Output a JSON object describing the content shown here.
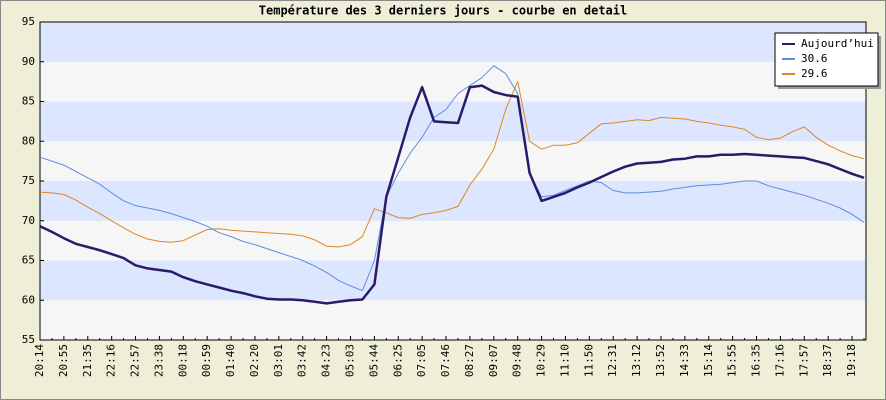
{
  "chart_data": {
    "type": "line",
    "title": "Température des 3 derniers jours - courbe en detail",
    "categories": [
      "20:14",
      null,
      "20:55",
      null,
      "21:35",
      null,
      "22:16",
      null,
      "22:57",
      null,
      "23:38",
      null,
      "00:18",
      null,
      "00:59",
      null,
      "01:40",
      null,
      "02:20",
      null,
      "03:01",
      null,
      "03:42",
      null,
      "04:23",
      null,
      "05:03",
      null,
      "05:44",
      null,
      "06:25",
      null,
      "07:05",
      null,
      "07:46",
      null,
      "08:27",
      null,
      "09:07",
      null,
      "09:48",
      null,
      "10:29",
      null,
      "11:10",
      null,
      "11:50",
      null,
      "12:31",
      null,
      "13:12",
      null,
      "13:52",
      null,
      "14:33",
      null,
      "15:14",
      null,
      "15:55",
      null,
      "16:35",
      null,
      "17:16",
      null,
      "17:57",
      null,
      "18:37",
      null,
      "19:18",
      null
    ],
    "series": [
      {
        "name": "Aujourd’hui",
        "color": "#2a1a6a",
        "values": [
          69.3,
          68.6,
          67.8,
          67.1,
          66.7,
          66.3,
          65.8,
          65.3,
          64.4,
          64.0,
          63.8,
          63.6,
          62.9,
          62.4,
          62.0,
          61.6,
          61.2,
          60.9,
          60.5,
          60.2,
          60.1,
          60.1,
          60.0,
          59.8,
          59.6,
          59.8,
          60.0,
          60.1,
          62,
          73,
          78,
          83,
          86.8,
          82.5,
          82.4,
          82.3,
          86.8,
          87,
          86.2,
          85.8,
          85.6,
          76,
          72.5,
          73,
          73.5,
          74.2,
          74.8,
          75.5,
          76.2,
          76.8,
          77.2,
          77.3,
          77.4,
          77.7,
          77.8,
          78.1,
          78.1,
          78.3,
          78.3,
          78.4,
          78.3,
          78.2,
          78.1,
          78,
          77.9,
          77.5,
          77.1,
          76.5,
          75.9,
          75.4
        ]
      },
      {
        "name": "30.6",
        "color": "#5b8fe0",
        "values": [
          78,
          77.5,
          77,
          76.2,
          75.4,
          74.6,
          73.5,
          72.5,
          71.9,
          71.6,
          71.3,
          70.9,
          70.4,
          69.9,
          69.3,
          68.5,
          68,
          67.4,
          67,
          66.5,
          66,
          65.5,
          65,
          64.3,
          63.5,
          62.5,
          61.8,
          61.2,
          65,
          73,
          76,
          78.5,
          80.5,
          83,
          84,
          86,
          87,
          88,
          89.5,
          88.5,
          86,
          76,
          73,
          73.2,
          73.8,
          74.4,
          75,
          74.8,
          73.8,
          73.5,
          73.5,
          73.6,
          73.7,
          74,
          74.2,
          74.4,
          74.5,
          74.6,
          74.8,
          75,
          75,
          74.4,
          74,
          73.6,
          73.2,
          72.7,
          72.2,
          71.6,
          70.8,
          69.8
        ]
      },
      {
        "name": "29.6",
        "color": "#dd8822",
        "values": [
          73.6,
          73.5,
          73.3,
          72.6,
          71.7,
          70.9,
          70.0,
          69.1,
          68.3,
          67.7,
          67.4,
          67.3,
          67.5,
          68.2,
          68.9,
          69.0,
          68.8,
          68.7,
          68.6,
          68.5,
          68.4,
          68.3,
          68.1,
          67.6,
          66.8,
          66.7,
          67,
          68,
          71.5,
          71,
          70.4,
          70.3,
          70.8,
          71,
          71.3,
          71.8,
          74.5,
          76.5,
          79,
          84,
          87.5,
          80,
          79,
          79.5,
          79.5,
          79.8,
          81,
          82.2,
          82.3,
          82.5,
          82.7,
          82.6,
          83,
          82.9,
          82.8,
          82.5,
          82.3,
          82,
          81.8,
          81.5,
          80.5,
          80.2,
          80.4,
          81.2,
          81.8,
          80.5,
          79.5,
          78.8,
          78.2,
          77.8
        ]
      }
    ],
    "ylim": [
      55,
      95
    ],
    "yticks": [
      55,
      60,
      65,
      70,
      75,
      80,
      85,
      90,
      95
    ],
    "band_colors": [
      "#f6f6f6",
      "#dde6ff"
    ],
    "legend": "top-right"
  }
}
